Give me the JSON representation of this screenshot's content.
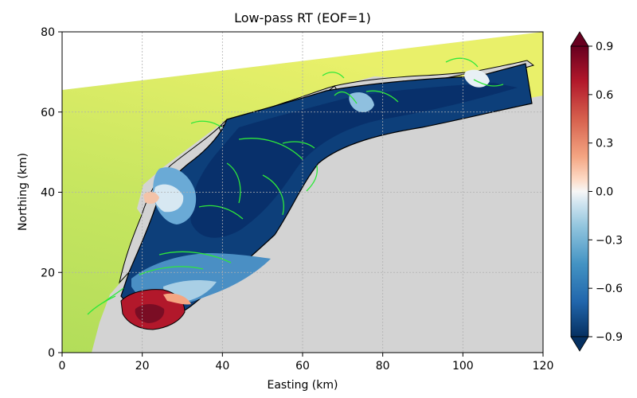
{
  "chart_data": {
    "type": "heatmap",
    "title": "Low-pass RT (EOF=1)",
    "xlabel": "Easting (km)",
    "ylabel": "Northing (km)",
    "xlim": [
      0,
      120
    ],
    "ylim": [
      0,
      80
    ],
    "xticks": [
      0,
      20,
      40,
      60,
      80,
      100,
      120
    ],
    "yticks": [
      0,
      20,
      40,
      60,
      80
    ],
    "grid": true,
    "colorbar": {
      "vmin": -0.9,
      "vmax": 0.9,
      "levels": 18,
      "ticks": [
        0.9,
        0.6,
        0.3,
        0.0,
        -0.3,
        -0.6,
        -0.9
      ],
      "tick_labels": [
        "0.9",
        "0.6",
        "0.3",
        "0.0",
        "−0.3",
        "−0.6",
        "−0.9"
      ],
      "colormap": "RdBu_r",
      "extend": "both"
    },
    "colors": {
      "land": "#d3d3d3",
      "sea_low": "#9bd25a",
      "sea_high": "#f0f26a",
      "contour": "#2ee83a",
      "coast": "#000000"
    },
    "regions": [
      {
        "name": "main-basin",
        "value": -0.85
      },
      {
        "name": "south-basin",
        "value": -0.55
      },
      {
        "name": "southern-hot-spot",
        "value": 0.85
      },
      {
        "name": "west-patch",
        "value": 0.1
      },
      {
        "name": "north-east-patch",
        "value": 0.05
      }
    ]
  }
}
